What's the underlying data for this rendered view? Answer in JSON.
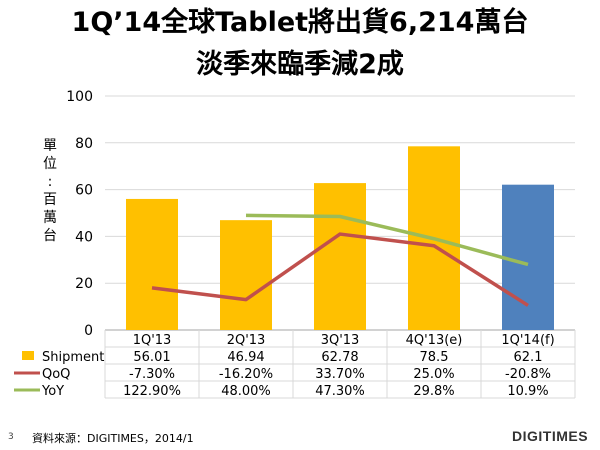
{
  "title_line1": "1Q’14全球Tablet將出貨6,214萬台",
  "title_line2": "淡季來臨季減2成",
  "page_number": "3",
  "source": "資料來源：DIGITIMES，2014/1",
  "brand": "DIGITIMES",
  "colors": {
    "shipment": "#FFC000",
    "forecast_bar": "#4F81BD",
    "qoq": "#C0504D",
    "yoy": "#9BBB59",
    "grid": "#D9D9D9"
  },
  "chart_data": {
    "type": "bar",
    "ylabel": "單位：百萬台",
    "ylim": [
      0,
      100
    ],
    "yticks": [
      0,
      20,
      40,
      60,
      80,
      100
    ],
    "categories": [
      "1Q'13",
      "2Q'13",
      "3Q'13",
      "4Q'13(e)",
      "1Q'14(f)"
    ],
    "bars": {
      "name": "Shipment",
      "values": [
        56.01,
        46.94,
        62.78,
        78.5,
        62.1
      ],
      "highlight_index": 4
    },
    "lines": [
      {
        "name": "QoQ",
        "values": [
          18,
          13,
          41,
          36,
          10.5
        ],
        "start_index": 0
      },
      {
        "name": "YoY",
        "values": [
          49,
          48.5,
          39,
          28
        ],
        "start_index": 1
      }
    ],
    "table": [
      {
        "legend": "Shipment",
        "kind": "bar",
        "cells": [
          "56.01",
          "46.94",
          "62.78",
          "78.5",
          "62.1"
        ]
      },
      {
        "legend": "QoQ",
        "kind": "qoq",
        "cells": [
          "-7.30%",
          "-16.20%",
          "33.70%",
          "25.0%",
          "-20.8%"
        ]
      },
      {
        "legend": "YoY",
        "kind": "yoy",
        "cells": [
          "122.90%",
          "48.00%",
          "47.30%",
          "29.8%",
          "10.9%"
        ]
      }
    ]
  }
}
